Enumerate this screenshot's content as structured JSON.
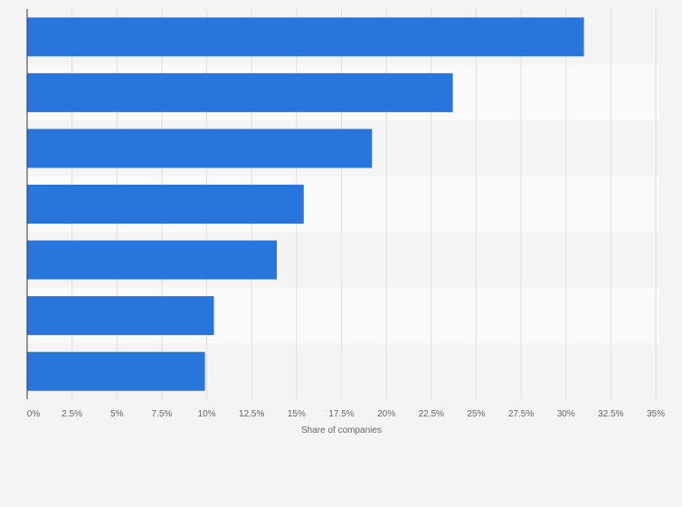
{
  "chart_data": {
    "type": "bar",
    "orientation": "horizontal",
    "categories": [
      "",
      "",
      "",
      "",
      "",
      "",
      ""
    ],
    "values": [
      31,
      23.7,
      19.2,
      15.4,
      13.9,
      10.4,
      9.9
    ],
    "title": "",
    "xlabel": "Share of companies",
    "ylabel": "",
    "xlim": [
      0,
      35
    ],
    "x_ticks": [
      "0%",
      "2.5%",
      "5%",
      "7.5%",
      "10%",
      "12.5%",
      "15%",
      "17.5%",
      "20%",
      "22.5%",
      "25%",
      "27.5%",
      "30%",
      "32.5%",
      "35%"
    ],
    "grid": "vertical",
    "legend": "none",
    "colors": {
      "bar": "#2876dd",
      "background": "#f4f4f4",
      "band_light": "#fafafa",
      "band_dark": "#f4f4f4",
      "grid": "#dedede",
      "axis": "#333333",
      "text": "#666666"
    }
  }
}
